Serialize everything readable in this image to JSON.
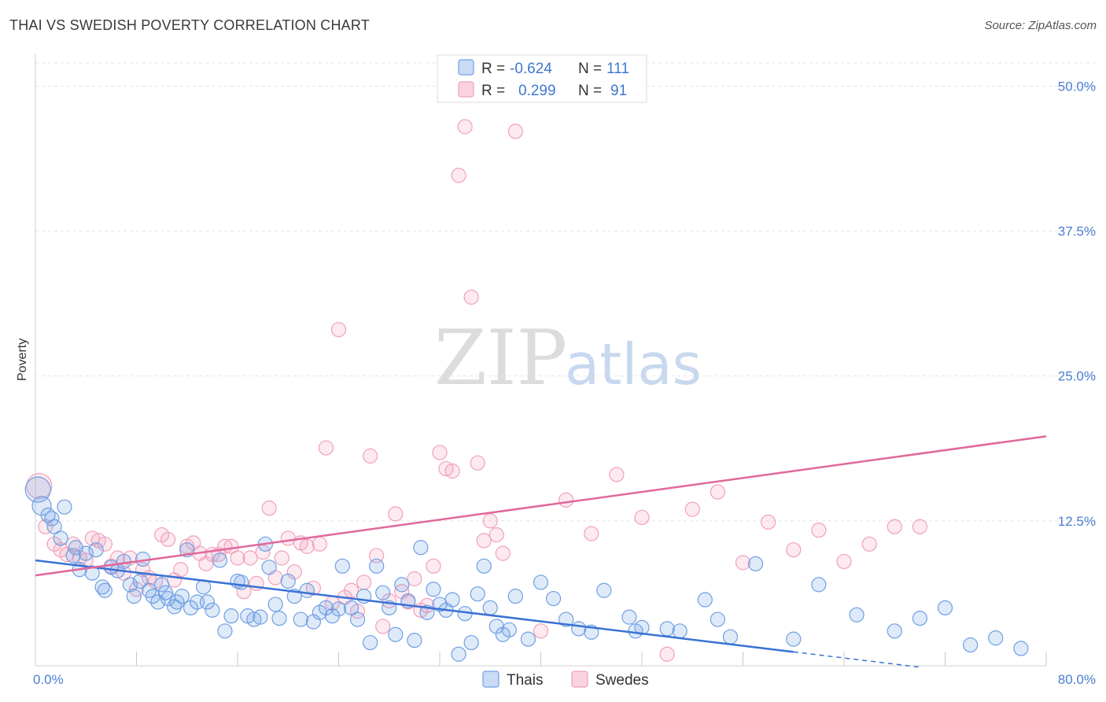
{
  "header": {
    "title": "THAI VS SWEDISH POVERTY CORRELATION CHART",
    "source": "Source: ZipAtlas.com"
  },
  "watermark": {
    "zip": "ZIP",
    "atlas": "atlas"
  },
  "legend": {
    "rows": [
      {
        "r_label": "R =",
        "r_value": "-0.624",
        "n_label": "N =",
        "n_value": "111",
        "color": "#6f9fe3"
      },
      {
        "r_label": "R =",
        "r_value": "0.299",
        "n_label": "N =",
        "n_value": "91",
        "color": "#f1a0ba"
      }
    ]
  },
  "chart_data": {
    "type": "scatter",
    "title": "THAI VS SWEDISH POVERTY CORRELATION CHART",
    "xlabel": "",
    "ylabel": "Poverty",
    "xlim": [
      0,
      80
    ],
    "ylim": [
      0,
      52
    ],
    "x_tick_labels": [
      "0.0%",
      "80.0%"
    ],
    "y_ticks": [
      12.5,
      25.0,
      37.5,
      50.0
    ],
    "y_tick_labels": [
      "12.5%",
      "25.0%",
      "37.5%",
      "50.0%"
    ],
    "grid": true,
    "legend_placement": "top-center",
    "series": [
      {
        "name": "Thais",
        "color": "#6f9fe3",
        "trend": {
          "x": [
            0,
            60
          ],
          "y": [
            9.1,
            1.2
          ],
          "dashed_extension_to_x": 70
        },
        "x": [
          0.2,
          0.5,
          1,
          1.3,
          1.5,
          2,
          2.3,
          3,
          3.2,
          3.5,
          4,
          4.5,
          4.8,
          5.3,
          5.5,
          6,
          6.5,
          7,
          7.5,
          7.8,
          8.3,
          8.5,
          9,
          9.3,
          9.7,
          10,
          10.3,
          10.5,
          11,
          11.2,
          11.6,
          12,
          12.3,
          12.8,
          13.3,
          13.6,
          14,
          14.6,
          15,
          15.5,
          16,
          16.3,
          16.8,
          17.3,
          17.8,
          18.2,
          18.5,
          19,
          19.3,
          20,
          20.5,
          21,
          21.5,
          22,
          22.5,
          23,
          23.5,
          24,
          24.3,
          25,
          25.5,
          26,
          26.5,
          27,
          27.5,
          28,
          28.5,
          29,
          29.5,
          30,
          30.5,
          31,
          31.5,
          32,
          32.5,
          33,
          33.5,
          34,
          34.5,
          35,
          35.5,
          36,
          36.5,
          37,
          37.5,
          38,
          39,
          40,
          41,
          42,
          43,
          44,
          45,
          47,
          47.5,
          48,
          50,
          51,
          53,
          54,
          55,
          57,
          60,
          62,
          65,
          68,
          70,
          72,
          74,
          76,
          78
        ],
        "y": [
          15.2,
          13.8,
          13,
          12.7,
          12,
          11,
          13.7,
          9.5,
          10.2,
          8.3,
          9.7,
          8,
          10,
          6.8,
          6.5,
          8.5,
          8.2,
          9,
          7,
          6,
          7.3,
          9.2,
          6.5,
          6,
          5.5,
          7,
          6.3,
          5.8,
          5.1,
          5.5,
          6,
          10,
          5,
          5.5,
          6.8,
          5.5,
          4.8,
          9.1,
          3,
          4.3,
          7.3,
          7.2,
          4.3,
          4,
          4.2,
          10.5,
          8.5,
          5.3,
          4.1,
          7.3,
          6,
          4,
          6.5,
          3.8,
          4.6,
          5,
          4.3,
          4.9,
          8.6,
          5,
          4,
          6,
          2,
          8.6,
          6.3,
          5,
          2.7,
          7,
          5.6,
          2.2,
          10.2,
          4.6,
          6.6,
          5.3,
          4.8,
          5.7,
          1,
          4.5,
          2,
          6.2,
          8.6,
          5,
          3.4,
          2.7,
          3.1,
          6,
          2.3,
          7.2,
          5.8,
          4,
          3.2,
          2.9,
          6.5,
          4.2,
          3,
          3.3,
          3.2,
          3,
          5.7,
          4,
          2.5,
          8.8,
          2.3,
          7,
          4.4,
          3,
          4.1,
          5,
          1.8,
          2.4,
          1.5
        ]
      },
      {
        "name": "Swedes",
        "color": "#f1a0ba",
        "trend": {
          "x": [
            0,
            80
          ],
          "y": [
            7.8,
            19.8
          ]
        },
        "x": [
          0.3,
          0.8,
          1.5,
          2,
          2.5,
          3,
          3.5,
          4,
          4.5,
          5,
          5.5,
          6,
          6.5,
          7,
          7.5,
          8,
          8.5,
          9,
          9.5,
          10,
          10.5,
          11,
          11.5,
          12,
          12.5,
          13,
          13.5,
          14,
          14.5,
          15,
          15.5,
          16,
          16.5,
          17,
          17.5,
          18,
          18.5,
          19,
          19.5,
          20,
          20.5,
          21,
          21.5,
          22,
          22.5,
          23,
          23.5,
          24,
          24.5,
          25,
          25.5,
          26,
          26.5,
          27,
          27.5,
          28,
          28.5,
          29,
          29.5,
          30,
          30.5,
          31,
          31.5,
          32,
          32.5,
          33,
          33.5,
          34,
          34.5,
          35,
          35.5,
          36,
          36.5,
          37,
          38,
          40,
          42,
          44,
          46,
          48,
          50,
          52,
          54,
          56,
          58,
          60,
          62,
          64,
          66,
          68,
          70
        ],
        "y": [
          15.5,
          12,
          10.5,
          10,
          9.6,
          10.5,
          9.3,
          9.1,
          11,
          10.8,
          10.5,
          8.6,
          9.3,
          8,
          9.3,
          6.6,
          8.3,
          7.6,
          7.3,
          11.3,
          10.9,
          7.4,
          8.3,
          10.3,
          10.6,
          9.7,
          8.8,
          9.6,
          9.6,
          10.3,
          10.3,
          9.3,
          6.4,
          9.3,
          7.1,
          9.8,
          13.6,
          7.6,
          9.3,
          11,
          8.1,
          10.6,
          10.3,
          6.7,
          10.5,
          18.8,
          5.4,
          29,
          5.9,
          6.5,
          4.7,
          7.2,
          18.1,
          9.5,
          3.4,
          5.6,
          13.1,
          6.4,
          5.5,
          7.5,
          4.8,
          5.2,
          8.6,
          18.4,
          17,
          16.8,
          42.3,
          46.5,
          31.8,
          17.5,
          10.8,
          12.5,
          11.3,
          9.7,
          46.1,
          3,
          14.3,
          11.4,
          16.5,
          12.8,
          1,
          13.5,
          15,
          8.9,
          12.4,
          10,
          11.7,
          9,
          10.5,
          12,
          12
        ]
      }
    ]
  },
  "bottom_legend": {
    "items": [
      {
        "label": "Thais",
        "color": "#6f9fe3"
      },
      {
        "label": "Swedes",
        "color": "#f1a0ba"
      }
    ]
  }
}
